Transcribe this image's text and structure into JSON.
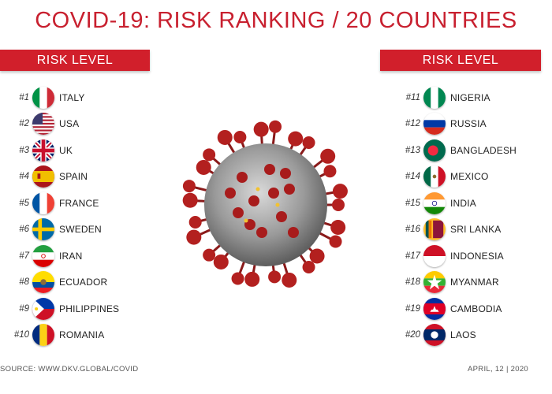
{
  "title": "COVID-19: RISK RANKING / 20 COUNTRIES",
  "left_header": "RISK LEVEL",
  "right_header": "RISK LEVEL",
  "left_list": [
    {
      "rank": "#1",
      "name": "ITALY",
      "flag": "italy-flag-icon"
    },
    {
      "rank": "#2",
      "name": "USA",
      "flag": "usa-flag-icon"
    },
    {
      "rank": "#3",
      "name": "UK",
      "flag": "uk-flag-icon"
    },
    {
      "rank": "#4",
      "name": "SPAIN",
      "flag": "spain-flag-icon"
    },
    {
      "rank": "#5",
      "name": "FRANCE",
      "flag": "france-flag-icon"
    },
    {
      "rank": "#6",
      "name": "SWEDEN",
      "flag": "sweden-flag-icon"
    },
    {
      "rank": "#7",
      "name": "IRAN",
      "flag": "iran-flag-icon"
    },
    {
      "rank": "#8",
      "name": "ECUADOR",
      "flag": "ecuador-flag-icon"
    },
    {
      "rank": "#9",
      "name": "PHILIPPINES",
      "flag": "philippines-flag-icon"
    },
    {
      "rank": "#10",
      "name": "ROMANIA",
      "flag": "romania-flag-icon"
    }
  ],
  "right_list": [
    {
      "rank": "#11",
      "name": "NIGERIA",
      "flag": "nigeria-flag-icon"
    },
    {
      "rank": "#12",
      "name": "RUSSIA",
      "flag": "russia-flag-icon"
    },
    {
      "rank": "#13",
      "name": "BANGLADESH",
      "flag": "bangladesh-flag-icon"
    },
    {
      "rank": "#14",
      "name": "MEXICO",
      "flag": "mexico-flag-icon"
    },
    {
      "rank": "#15",
      "name": "INDIA",
      "flag": "india-flag-icon"
    },
    {
      "rank": "#16",
      "name": "SRI LANKA",
      "flag": "sri-lanka-flag-icon"
    },
    {
      "rank": "#17",
      "name": "INDONESIA",
      "flag": "indonesia-flag-icon"
    },
    {
      "rank": "#18",
      "name": "MYANMAR",
      "flag": "myanmar-flag-icon"
    },
    {
      "rank": "#19",
      "name": "CAMBODIA",
      "flag": "cambodia-flag-icon"
    },
    {
      "rank": "#20",
      "name": "LAOS",
      "flag": "laos-flag-icon"
    }
  ],
  "source": "SOURCE: WWW.DKV.GLOBAL/COVID",
  "date": "APRIL, 12 | 2020",
  "colors": {
    "accent": "#d11f2b",
    "title": "#c8202f"
  }
}
